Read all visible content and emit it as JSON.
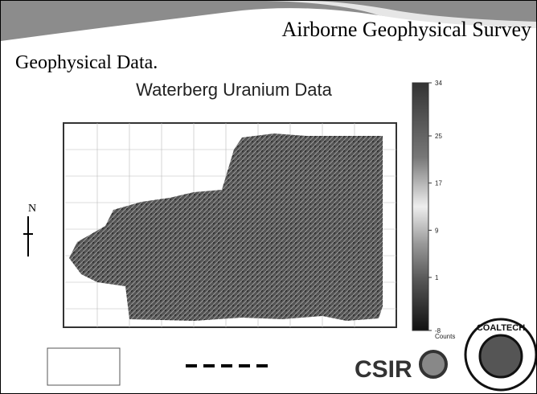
{
  "header": {
    "title": "Airborne Geophysical Survey",
    "subtitle": "Geophysical Data."
  },
  "figure": {
    "title": "Waterberg Uranium Data",
    "colorbar": {
      "ticks": [
        34,
        25,
        17,
        9,
        1,
        -8
      ],
      "range": [
        -8,
        34
      ],
      "label": "Counts"
    }
  },
  "logos": {
    "csir": "CSIR",
    "coaltech": "COALTECH"
  }
}
